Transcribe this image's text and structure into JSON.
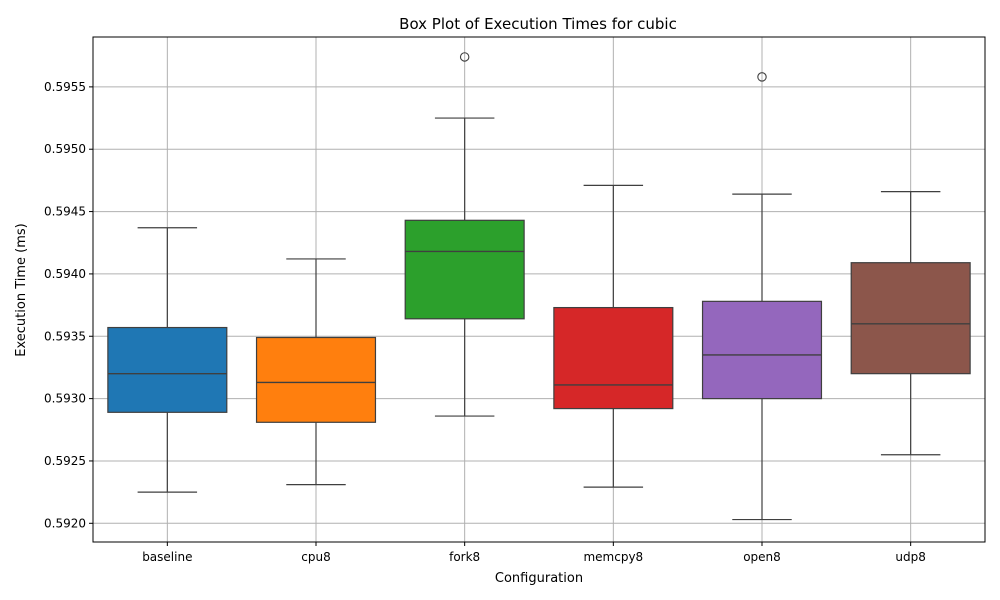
{
  "chart_data": {
    "type": "box",
    "title": "Box Plot of Execution Times for cubic",
    "xlabel": "Configuration",
    "ylabel": "Execution Time (ms)",
    "ylim": [
      0.59185,
      0.5959
    ],
    "yticks": [
      0.592,
      0.5925,
      0.593,
      0.5935,
      0.594,
      0.5945,
      0.595,
      0.5955
    ],
    "ytick_labels": [
      "0.5920",
      "0.5925",
      "0.5930",
      "0.5935",
      "0.5940",
      "0.5945",
      "0.5950",
      "0.5955"
    ],
    "grid": true,
    "categories": [
      "baseline",
      "cpu8",
      "fork8",
      "memcpy8",
      "open8",
      "udp8"
    ],
    "colors": [
      "#1f77b4",
      "#ff7f0e",
      "#2ca02c",
      "#d62728",
      "#9467bd",
      "#8c564b"
    ],
    "boxes": [
      {
        "whisker_low": 0.59225,
        "q1": 0.59289,
        "median": 0.5932,
        "q3": 0.59357,
        "whisker_high": 0.59437,
        "outliers": []
      },
      {
        "whisker_low": 0.59231,
        "q1": 0.59281,
        "median": 0.59313,
        "q3": 0.59349,
        "whisker_high": 0.59412,
        "outliers": []
      },
      {
        "whisker_low": 0.59286,
        "q1": 0.59364,
        "median": 0.59418,
        "q3": 0.59443,
        "whisker_high": 0.59525,
        "outliers": [
          0.59574
        ]
      },
      {
        "whisker_low": 0.59229,
        "q1": 0.59292,
        "median": 0.59311,
        "q3": 0.59373,
        "whisker_high": 0.59471,
        "outliers": []
      },
      {
        "whisker_low": 0.59203,
        "q1": 0.593,
        "median": 0.59335,
        "q3": 0.59378,
        "whisker_high": 0.59464,
        "outliers": [
          0.59558
        ]
      },
      {
        "whisker_low": 0.59255,
        "q1": 0.5932,
        "median": 0.5936,
        "q3": 0.59409,
        "whisker_high": 0.59466,
        "outliers": []
      }
    ]
  }
}
